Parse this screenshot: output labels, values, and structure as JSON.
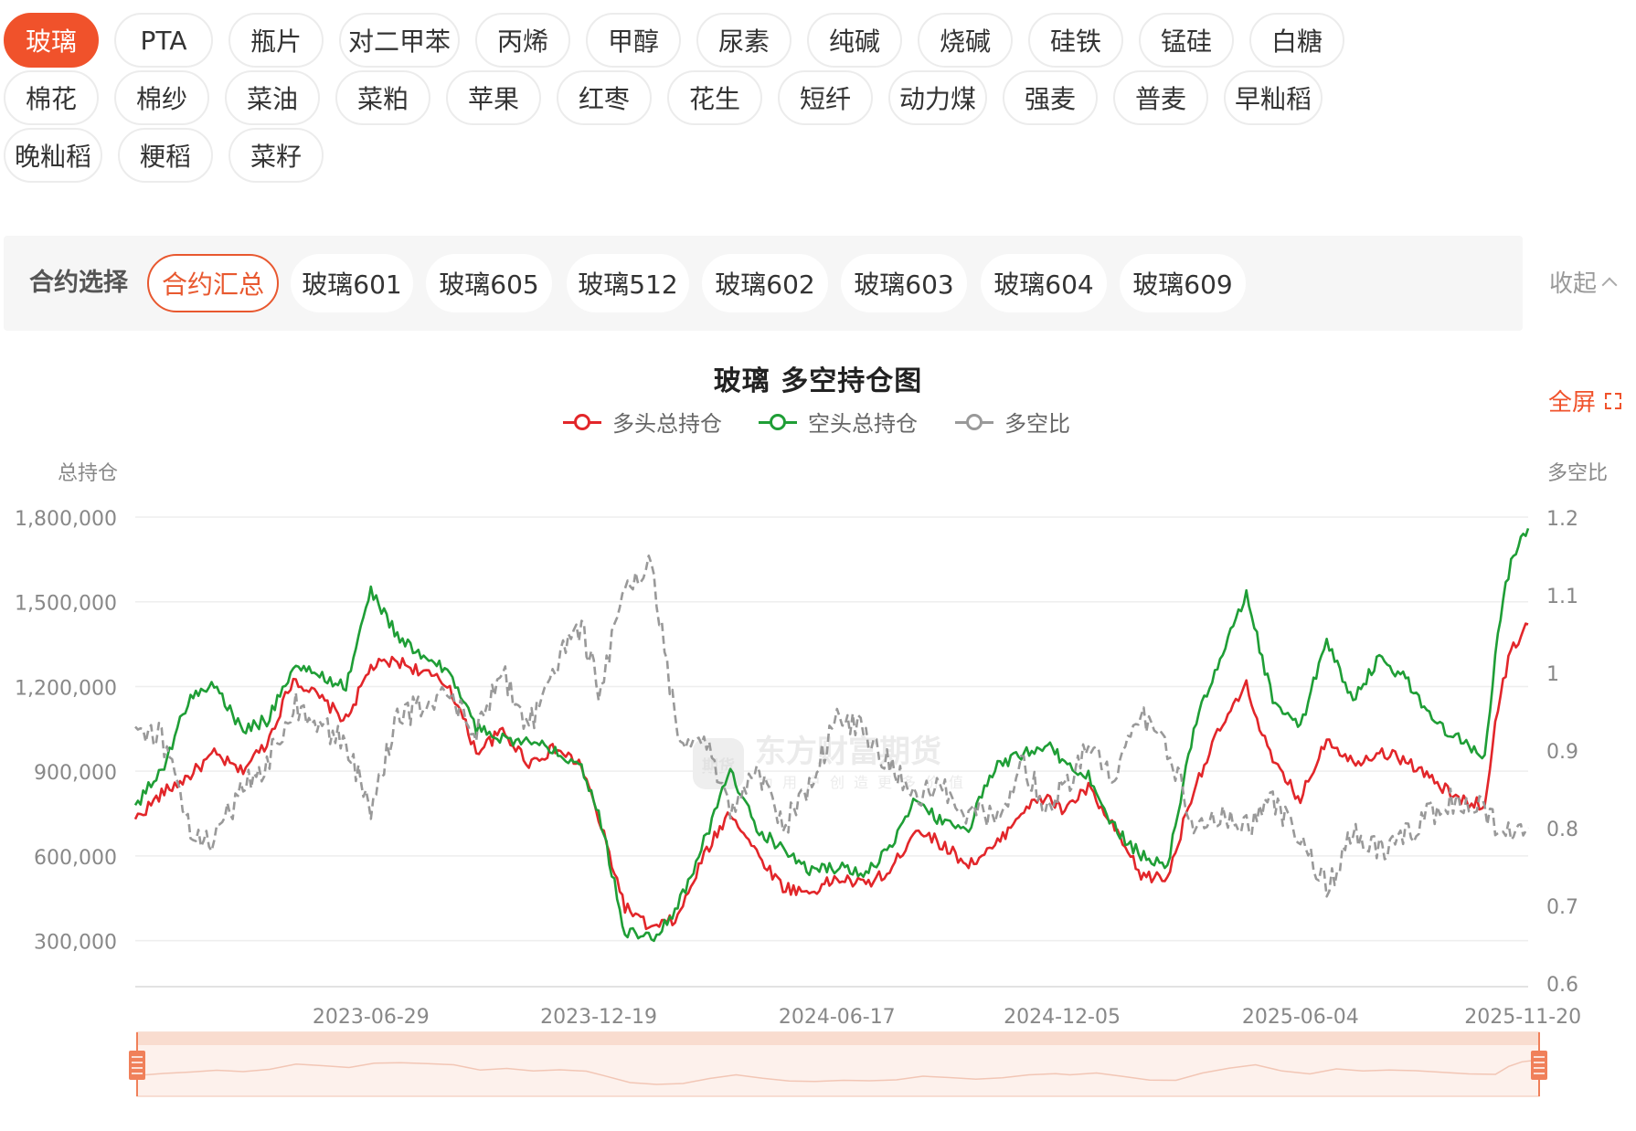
{
  "commodities": {
    "rows": [
      [
        "玻璃",
        "PTA",
        "瓶片",
        "对二甲苯",
        "丙烯",
        "甲醇",
        "尿素",
        "纯碱",
        "烧碱",
        "硅铁",
        "锰硅",
        "白糖"
      ],
      [
        "棉花",
        "棉纱",
        "菜油",
        "菜粕",
        "苹果",
        "红枣",
        "花生",
        "短纤",
        "动力煤",
        "强麦",
        "普麦",
        "早籼稻"
      ],
      [
        "晚籼稻",
        "粳稻",
        "菜籽"
      ]
    ],
    "active": "玻璃"
  },
  "contract_select": {
    "label": "合约选择",
    "items": [
      "合约汇总",
      "玻璃601",
      "玻璃605",
      "玻璃512",
      "玻璃602",
      "玻璃603",
      "玻璃604",
      "玻璃609"
    ],
    "active": "合约汇总",
    "collapse_label": "收起"
  },
  "fullscreen_label": "全屏",
  "watermark": {
    "brand": "东方财富期货",
    "slogan": "为用户创造更多价值",
    "logo_text": "期货"
  },
  "colors": {
    "accent": "#f0522b",
    "long": "#e2262a",
    "short": "#1f9e36",
    "ratio": "#999999"
  },
  "chart_data": {
    "type": "line",
    "title": "玻璃 多空持仓图",
    "left_axis_label": "总持仓",
    "right_axis_label": "多空比",
    "left_ticks": [
      "1,800,000",
      "1,500,000",
      "1,200,000",
      "900,000",
      "600,000",
      "300,000"
    ],
    "right_ticks": [
      "1.2",
      "1.1",
      "1",
      "0.9",
      "0.8",
      "0.7",
      "0.6"
    ],
    "left_range": [
      150000,
      1800000
    ],
    "right_range": [
      0.6,
      1.2
    ],
    "x_range": [
      "2023-01-01",
      "2025-11-24"
    ],
    "x_tick_labels": [
      "2023-06-29",
      "2023-12-19",
      "2024-06-17",
      "2024-12-05",
      "2025-06-04",
      "2025-11-20"
    ],
    "grid": true,
    "legend_position": "top-center",
    "series": [
      {
        "name": "多头总持仓",
        "axis": "left",
        "color": "#e2262a",
        "points": [
          [
            "2023-01-01",
            730000
          ],
          [
            "2023-01-21",
            820000
          ],
          [
            "2023-02-10",
            880000
          ],
          [
            "2023-03-02",
            960000
          ],
          [
            "2023-03-22",
            900000
          ],
          [
            "2023-04-11",
            1000000
          ],
          [
            "2023-05-01",
            1230000
          ],
          [
            "2023-05-21",
            1160000
          ],
          [
            "2023-06-10",
            1080000
          ],
          [
            "2023-06-29",
            1270000
          ],
          [
            "2023-07-19",
            1290000
          ],
          [
            "2023-08-08",
            1250000
          ],
          [
            "2023-08-28",
            1200000
          ],
          [
            "2023-09-17",
            970000
          ],
          [
            "2023-10-07",
            1040000
          ],
          [
            "2023-10-27",
            930000
          ],
          [
            "2023-11-16",
            980000
          ],
          [
            "2023-12-06",
            920000
          ],
          [
            "2023-12-19",
            730000
          ],
          [
            "2024-01-08",
            420000
          ],
          [
            "2024-01-28",
            340000
          ],
          [
            "2024-02-17",
            380000
          ],
          [
            "2024-03-08",
            600000
          ],
          [
            "2024-03-28",
            760000
          ],
          [
            "2024-04-17",
            610000
          ],
          [
            "2024-05-07",
            490000
          ],
          [
            "2024-05-27",
            470000
          ],
          [
            "2024-06-17",
            520000
          ],
          [
            "2024-07-07",
            500000
          ],
          [
            "2024-07-27",
            540000
          ],
          [
            "2024-08-16",
            700000
          ],
          [
            "2024-09-05",
            640000
          ],
          [
            "2024-09-25",
            570000
          ],
          [
            "2024-10-15",
            630000
          ],
          [
            "2024-11-04",
            760000
          ],
          [
            "2024-11-24",
            810000
          ],
          [
            "2024-12-05",
            760000
          ],
          [
            "2024-12-25",
            840000
          ],
          [
            "2025-01-14",
            690000
          ],
          [
            "2025-02-03",
            530000
          ],
          [
            "2025-02-23",
            520000
          ],
          [
            "2025-03-15",
            840000
          ],
          [
            "2025-04-04",
            1050000
          ],
          [
            "2025-04-24",
            1200000
          ],
          [
            "2025-05-14",
            930000
          ],
          [
            "2025-06-04",
            800000
          ],
          [
            "2025-06-24",
            1020000
          ],
          [
            "2025-07-14",
            930000
          ],
          [
            "2025-08-03",
            970000
          ],
          [
            "2025-08-23",
            940000
          ],
          [
            "2025-09-12",
            870000
          ],
          [
            "2025-10-02",
            800000
          ],
          [
            "2025-10-22",
            780000
          ],
          [
            "2025-11-01",
            1130000
          ],
          [
            "2025-11-11",
            1330000
          ],
          [
            "2025-11-24",
            1420000
          ]
        ]
      },
      {
        "name": "空头总持仓",
        "axis": "left",
        "color": "#1f9e36",
        "points": [
          [
            "2023-01-01",
            780000
          ],
          [
            "2023-01-21",
            900000
          ],
          [
            "2023-02-10",
            1150000
          ],
          [
            "2023-03-02",
            1210000
          ],
          [
            "2023-03-22",
            1050000
          ],
          [
            "2023-04-11",
            1080000
          ],
          [
            "2023-05-01",
            1270000
          ],
          [
            "2023-05-21",
            1240000
          ],
          [
            "2023-06-10",
            1200000
          ],
          [
            "2023-06-29",
            1540000
          ],
          [
            "2023-07-19",
            1380000
          ],
          [
            "2023-08-08",
            1300000
          ],
          [
            "2023-08-28",
            1250000
          ],
          [
            "2023-09-17",
            1050000
          ],
          [
            "2023-10-07",
            1020000
          ],
          [
            "2023-10-27",
            1000000
          ],
          [
            "2023-11-16",
            980000
          ],
          [
            "2023-12-06",
            920000
          ],
          [
            "2023-12-19",
            760000
          ],
          [
            "2024-01-08",
            330000
          ],
          [
            "2024-01-28",
            310000
          ],
          [
            "2024-02-17",
            420000
          ],
          [
            "2024-03-08",
            650000
          ],
          [
            "2024-03-28",
            900000
          ],
          [
            "2024-04-17",
            700000
          ],
          [
            "2024-05-07",
            620000
          ],
          [
            "2024-05-27",
            550000
          ],
          [
            "2024-06-17",
            560000
          ],
          [
            "2024-07-07",
            540000
          ],
          [
            "2024-07-27",
            620000
          ],
          [
            "2024-08-16",
            800000
          ],
          [
            "2024-09-05",
            720000
          ],
          [
            "2024-09-25",
            700000
          ],
          [
            "2024-10-15",
            920000
          ],
          [
            "2024-11-04",
            960000
          ],
          [
            "2024-11-24",
            1000000
          ],
          [
            "2024-12-05",
            940000
          ],
          [
            "2024-12-25",
            880000
          ],
          [
            "2025-01-14",
            700000
          ],
          [
            "2025-02-03",
            600000
          ],
          [
            "2025-02-23",
            560000
          ],
          [
            "2025-03-15",
            1050000
          ],
          [
            "2025-04-04",
            1300000
          ],
          [
            "2025-04-24",
            1520000
          ],
          [
            "2025-05-14",
            1150000
          ],
          [
            "2025-06-04",
            1050000
          ],
          [
            "2025-06-24",
            1370000
          ],
          [
            "2025-07-14",
            1150000
          ],
          [
            "2025-08-03",
            1300000
          ],
          [
            "2025-08-23",
            1230000
          ],
          [
            "2025-09-12",
            1080000
          ],
          [
            "2025-10-02",
            1020000
          ],
          [
            "2025-10-22",
            950000
          ],
          [
            "2025-11-01",
            1400000
          ],
          [
            "2025-11-11",
            1650000
          ],
          [
            "2025-11-24",
            1760000
          ]
        ]
      },
      {
        "name": "多空比",
        "axis": "right",
        "color": "#999999",
        "dashed": true,
        "points": [
          [
            "2023-01-01",
            0.93
          ],
          [
            "2023-01-21",
            0.92
          ],
          [
            "2023-02-10",
            0.8
          ],
          [
            "2023-03-02",
            0.78
          ],
          [
            "2023-03-22",
            0.85
          ],
          [
            "2023-04-11",
            0.88
          ],
          [
            "2023-05-01",
            0.96
          ],
          [
            "2023-05-21",
            0.93
          ],
          [
            "2023-06-10",
            0.91
          ],
          [
            "2023-06-29",
            0.82
          ],
          [
            "2023-07-19",
            0.94
          ],
          [
            "2023-08-08",
            0.96
          ],
          [
            "2023-08-28",
            0.97
          ],
          [
            "2023-09-17",
            0.92
          ],
          [
            "2023-10-07",
            1.0
          ],
          [
            "2023-10-27",
            0.93
          ],
          [
            "2023-11-16",
            1.01
          ],
          [
            "2023-12-06",
            1.06
          ],
          [
            "2023-12-19",
            0.98
          ],
          [
            "2024-01-08",
            1.1
          ],
          [
            "2024-01-28",
            1.14
          ],
          [
            "2024-02-17",
            0.92
          ],
          [
            "2024-03-08",
            0.92
          ],
          [
            "2024-03-28",
            0.82
          ],
          [
            "2024-04-17",
            0.88
          ],
          [
            "2024-05-07",
            0.8
          ],
          [
            "2024-05-27",
            0.85
          ],
          [
            "2024-06-17",
            0.94
          ],
          [
            "2024-07-07",
            0.93
          ],
          [
            "2024-07-27",
            0.88
          ],
          [
            "2024-08-16",
            0.84
          ],
          [
            "2024-09-05",
            0.85
          ],
          [
            "2024-09-25",
            0.82
          ],
          [
            "2024-10-15",
            0.81
          ],
          [
            "2024-11-04",
            0.88
          ],
          [
            "2024-11-24",
            0.83
          ],
          [
            "2024-12-05",
            0.85
          ],
          [
            "2024-12-25",
            0.9
          ],
          [
            "2025-01-14",
            0.86
          ],
          [
            "2025-02-03",
            0.95
          ],
          [
            "2025-02-23",
            0.9
          ],
          [
            "2025-03-15",
            0.81
          ],
          [
            "2025-04-04",
            0.82
          ],
          [
            "2025-04-24",
            0.8
          ],
          [
            "2025-05-14",
            0.84
          ],
          [
            "2025-06-04",
            0.78
          ],
          [
            "2025-06-24",
            0.72
          ],
          [
            "2025-07-14",
            0.8
          ],
          [
            "2025-08-03",
            0.77
          ],
          [
            "2025-08-23",
            0.79
          ],
          [
            "2025-09-12",
            0.82
          ],
          [
            "2025-10-02",
            0.84
          ],
          [
            "2025-10-22",
            0.82
          ],
          [
            "2025-11-01",
            0.8
          ],
          [
            "2025-11-11",
            0.8
          ],
          [
            "2025-11-24",
            0.8
          ]
        ]
      }
    ],
    "zoom_range": [
      0,
      100
    ]
  }
}
